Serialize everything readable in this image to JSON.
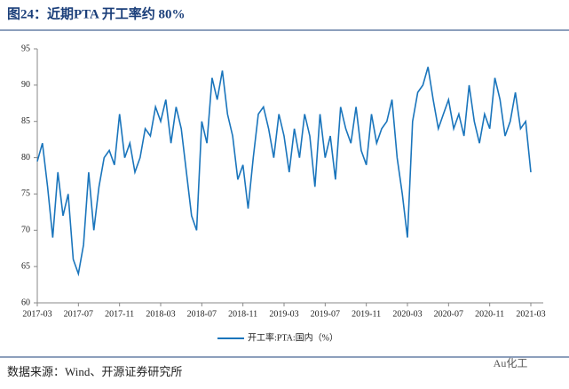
{
  "chart_data": {
    "type": "line",
    "title": "图24：近期PTA 开工率约 80%",
    "source": "数据来源：Wind、开源证券研究所",
    "watermark": "Au化工",
    "categories": [
      "2017-03",
      null,
      null,
      null,
      null,
      null,
      null,
      null,
      "2017-07",
      null,
      null,
      null,
      null,
      null,
      null,
      null,
      "2017-11",
      null,
      null,
      null,
      null,
      null,
      null,
      null,
      "2018-03",
      null,
      null,
      null,
      null,
      null,
      null,
      null,
      "2018-07",
      null,
      null,
      null,
      null,
      null,
      null,
      null,
      "2018-11",
      null,
      null,
      null,
      null,
      null,
      null,
      null,
      "2019-03",
      null,
      null,
      null,
      null,
      null,
      null,
      null,
      "2019-07",
      null,
      null,
      null,
      null,
      null,
      null,
      null,
      "2019-11",
      null,
      null,
      null,
      null,
      null,
      null,
      null,
      "2020-03",
      null,
      null,
      null,
      null,
      null,
      null,
      null,
      "2020-07",
      null,
      null,
      null,
      null,
      null,
      null,
      null,
      "2020-11",
      null,
      null,
      null,
      null,
      null,
      null,
      null,
      "2021-03"
    ],
    "series": [
      {
        "name": "开工率:PTA:国内（%）",
        "color": "#1a75bc",
        "values": [
          79.5,
          82,
          76,
          69,
          78,
          72,
          75,
          66,
          64,
          68,
          78,
          70,
          76,
          80,
          81,
          79,
          86,
          80,
          82,
          78,
          80,
          84,
          83,
          87,
          85,
          88,
          82,
          87,
          84,
          78,
          72,
          70,
          85,
          82,
          91,
          88,
          92,
          86,
          83,
          77,
          79,
          73,
          80,
          86,
          87,
          84,
          80,
          86,
          83,
          78,
          84,
          80,
          86,
          83,
          76,
          86,
          80,
          83,
          77,
          87,
          84,
          82,
          87,
          81,
          79,
          86,
          82,
          84,
          85,
          88,
          80,
          75,
          69,
          85,
          89,
          90,
          92.5,
          88,
          84,
          86,
          88,
          84,
          86,
          83,
          90,
          85,
          82,
          86,
          84,
          91,
          88,
          83,
          85,
          89,
          84,
          85,
          78
        ]
      }
    ],
    "ylim": [
      60,
      95
    ],
    "yticks": [
      60,
      65,
      70,
      75,
      80,
      85,
      90,
      95
    ],
    "legend": "bottom"
  }
}
